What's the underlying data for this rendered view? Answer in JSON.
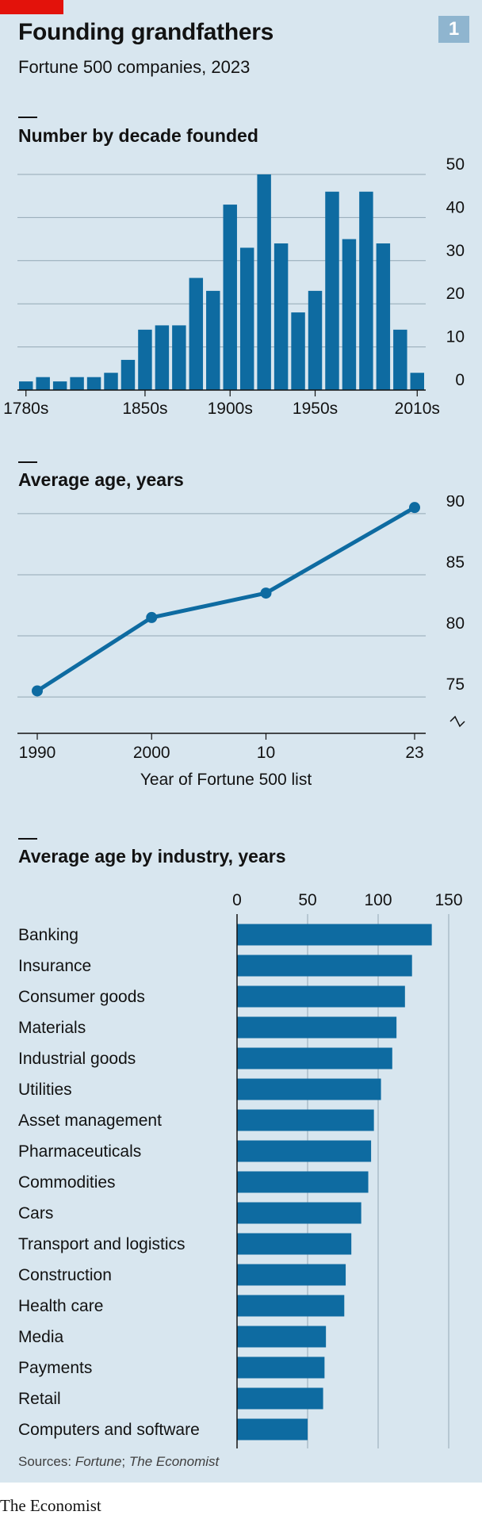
{
  "header": {
    "title": "Founding grandfathers",
    "subtitle": "Fortune 500 companies, 2023",
    "chart_number": "1"
  },
  "footer": {
    "source_prefix": "Sources: ",
    "source_1": "Fortune",
    "source_sep": "; ",
    "source_2": "The Economist",
    "brand": "The Economist"
  },
  "colors": {
    "bar": "#0e6ba1",
    "background": "#d8e6ef",
    "gridline": "#93a8b5",
    "accent_red": "#e3120b"
  },
  "chart_data": [
    {
      "type": "bar",
      "title": "Number by decade founded",
      "categories": [
        "1780s",
        "1790s",
        "1800s",
        "1810s",
        "1820s",
        "1830s",
        "1840s",
        "1850s",
        "1860s",
        "1870s",
        "1880s",
        "1890s",
        "1900s",
        "1910s",
        "1920s",
        "1930s",
        "1940s",
        "1950s",
        "1960s",
        "1970s",
        "1980s",
        "1990s",
        "2000s",
        "2010s"
      ],
      "values": [
        2,
        3,
        2,
        3,
        3,
        4,
        7,
        14,
        15,
        15,
        26,
        23,
        43,
        33,
        50,
        34,
        18,
        23,
        46,
        35,
        46,
        34,
        14,
        4
      ],
      "x_tick_labels": [
        "1780s",
        "1850s",
        "1900s",
        "1950s",
        "2010s"
      ],
      "y_ticks": [
        0,
        10,
        20,
        30,
        40,
        50
      ],
      "ylim": [
        0,
        50
      ],
      "grid": true,
      "y_axis_side": "right"
    },
    {
      "type": "line",
      "title": "Average age, years",
      "x": [
        1990,
        2000,
        2010,
        2023
      ],
      "x_tick_labels": [
        "1990",
        "2000",
        "10",
        "23"
      ],
      "values": [
        75.5,
        81.5,
        83.5,
        90.5
      ],
      "y_ticks": [
        75,
        80,
        85,
        90
      ],
      "ylim": [
        73,
        91
      ],
      "xlabel": "Year of Fortune 500 list",
      "grid": true,
      "y_axis_side": "right",
      "axis_break": true
    },
    {
      "type": "bar",
      "orientation": "horizontal",
      "title": "Average age by industry, years",
      "categories": [
        "Banking",
        "Insurance",
        "Consumer goods",
        "Materials",
        "Industrial goods",
        "Utilities",
        "Asset management",
        "Pharmaceuticals",
        "Commodities",
        "Cars",
        "Transport and logistics",
        "Construction",
        "Health care",
        "Media",
        "Payments",
        "Retail",
        "Computers and software"
      ],
      "values": [
        138,
        124,
        119,
        113,
        110,
        102,
        97,
        95,
        93,
        88,
        81,
        77,
        76,
        63,
        62,
        61,
        50
      ],
      "x_ticks": [
        0,
        50,
        100,
        150
      ],
      "xlim": [
        0,
        150
      ],
      "grid": true
    }
  ]
}
